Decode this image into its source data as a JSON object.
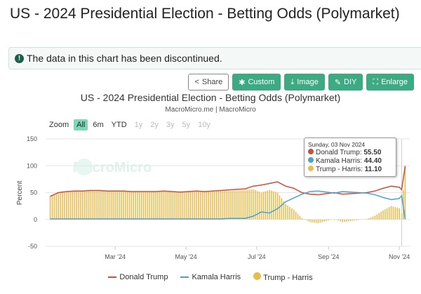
{
  "page_title": "US - 2024 Presidential Election - Betting Odds (Polymarket)",
  "notice": {
    "icon": "exclamation-circle-icon",
    "text": "The data in this chart has been discontinued."
  },
  "toolbar": [
    {
      "label": "Share",
      "icon": "share-icon"
    },
    {
      "label": "Custom",
      "icon": "gear-icon"
    },
    {
      "label": "Image",
      "icon": "download-icon"
    },
    {
      "label": "DIY",
      "icon": "pencil-icon"
    },
    {
      "label": "Enlarge",
      "icon": "expand-icon"
    }
  ],
  "zoom": {
    "label": "Zoom",
    "options": [
      "All",
      "6m",
      "YTD",
      "1y",
      "2y",
      "3y",
      "5y",
      "10y"
    ],
    "active": "All",
    "disabled": [
      "1y",
      "2y",
      "3y",
      "5y",
      "10y"
    ]
  },
  "watermark": "MacroMicro",
  "tooltip": {
    "date": "Sunday, 03 Nov 2024",
    "rows": [
      {
        "name": "Donald Trump",
        "value": "55.50"
      },
      {
        "name": "Kamala Harris",
        "value": "44.40"
      },
      {
        "name": "Trump - Harris",
        "value": "11.10"
      }
    ]
  },
  "chart_data": {
    "type": "line",
    "title": "US - 2024 Presidential Election - Betting Odds (Polymarket)",
    "subtitle": "MacroMicro.me | MacroMicro",
    "ylabel": "Percent",
    "ylim": [
      -50,
      150
    ],
    "yticks": [
      150,
      100,
      50,
      0,
      -50
    ],
    "xlim": [
      "2024-01-01",
      "2024-11-10"
    ],
    "xticks": [
      {
        "date": "2024-03-01",
        "label": "Mar '24"
      },
      {
        "date": "2024-05-01",
        "label": "May '24"
      },
      {
        "date": "2024-07-01",
        "label": "Jul '24"
      },
      {
        "date": "2024-09-01",
        "label": "Sep '24"
      },
      {
        "date": "2024-11-01",
        "label": "Nov '24"
      }
    ],
    "grid": true,
    "legend_position": "bottom",
    "colors": {
      "trump": "#c9503a",
      "harris": "#4aa3cf",
      "diff": "#e8bd50"
    },
    "x": [
      "2024-01-05",
      "2024-01-12",
      "2024-01-19",
      "2024-01-26",
      "2024-02-02",
      "2024-02-09",
      "2024-02-16",
      "2024-02-23",
      "2024-03-01",
      "2024-03-08",
      "2024-03-15",
      "2024-03-22",
      "2024-03-29",
      "2024-04-05",
      "2024-04-12",
      "2024-04-19",
      "2024-04-26",
      "2024-05-03",
      "2024-05-10",
      "2024-05-17",
      "2024-05-24",
      "2024-05-31",
      "2024-06-07",
      "2024-06-14",
      "2024-06-21",
      "2024-06-28",
      "2024-07-05",
      "2024-07-12",
      "2024-07-19",
      "2024-07-26",
      "2024-08-02",
      "2024-08-09",
      "2024-08-16",
      "2024-08-23",
      "2024-08-30",
      "2024-09-06",
      "2024-09-13",
      "2024-09-20",
      "2024-09-27",
      "2024-10-04",
      "2024-10-11",
      "2024-10-18",
      "2024-10-25",
      "2024-11-01",
      "2024-11-03",
      "2024-11-06"
    ],
    "series": [
      {
        "name": "Donald Trump",
        "type": "line",
        "values": [
          43,
          50,
          52,
          53,
          53,
          54,
          54,
          53,
          53,
          53,
          52,
          52,
          52,
          52,
          53,
          52,
          51,
          52,
          53,
          52,
          53,
          54,
          55,
          56,
          57,
          62,
          64,
          67,
          70,
          62,
          58,
          50,
          47,
          46,
          48,
          50,
          47,
          48,
          49,
          50,
          53,
          58,
          62,
          60,
          55.5,
          99
        ]
      },
      {
        "name": "Kamala Harris",
        "type": "line",
        "values": [
          1,
          1,
          1,
          1,
          1,
          1,
          1,
          1,
          1,
          1,
          1,
          1,
          1,
          1,
          1,
          1,
          1,
          1,
          1,
          1,
          1,
          1,
          2,
          2,
          2,
          6,
          14,
          12,
          20,
          33,
          40,
          47,
          52,
          53,
          51,
          49,
          52,
          51,
          50,
          49,
          46,
          41,
          37,
          39,
          44.4,
          1
        ]
      },
      {
        "name": "Trump - Harris",
        "type": "bar",
        "values": [
          42,
          49,
          51,
          52,
          52,
          53,
          53,
          52,
          52,
          52,
          51,
          51,
          51,
          51,
          52,
          51,
          50,
          51,
          52,
          51,
          52,
          53,
          53,
          54,
          55,
          56,
          50,
          55,
          50,
          29,
          18,
          3,
          -5,
          -7,
          -3,
          1,
          -5,
          -3,
          -1,
          1,
          7,
          17,
          25,
          21,
          11.1,
          98
        ]
      }
    ]
  }
}
